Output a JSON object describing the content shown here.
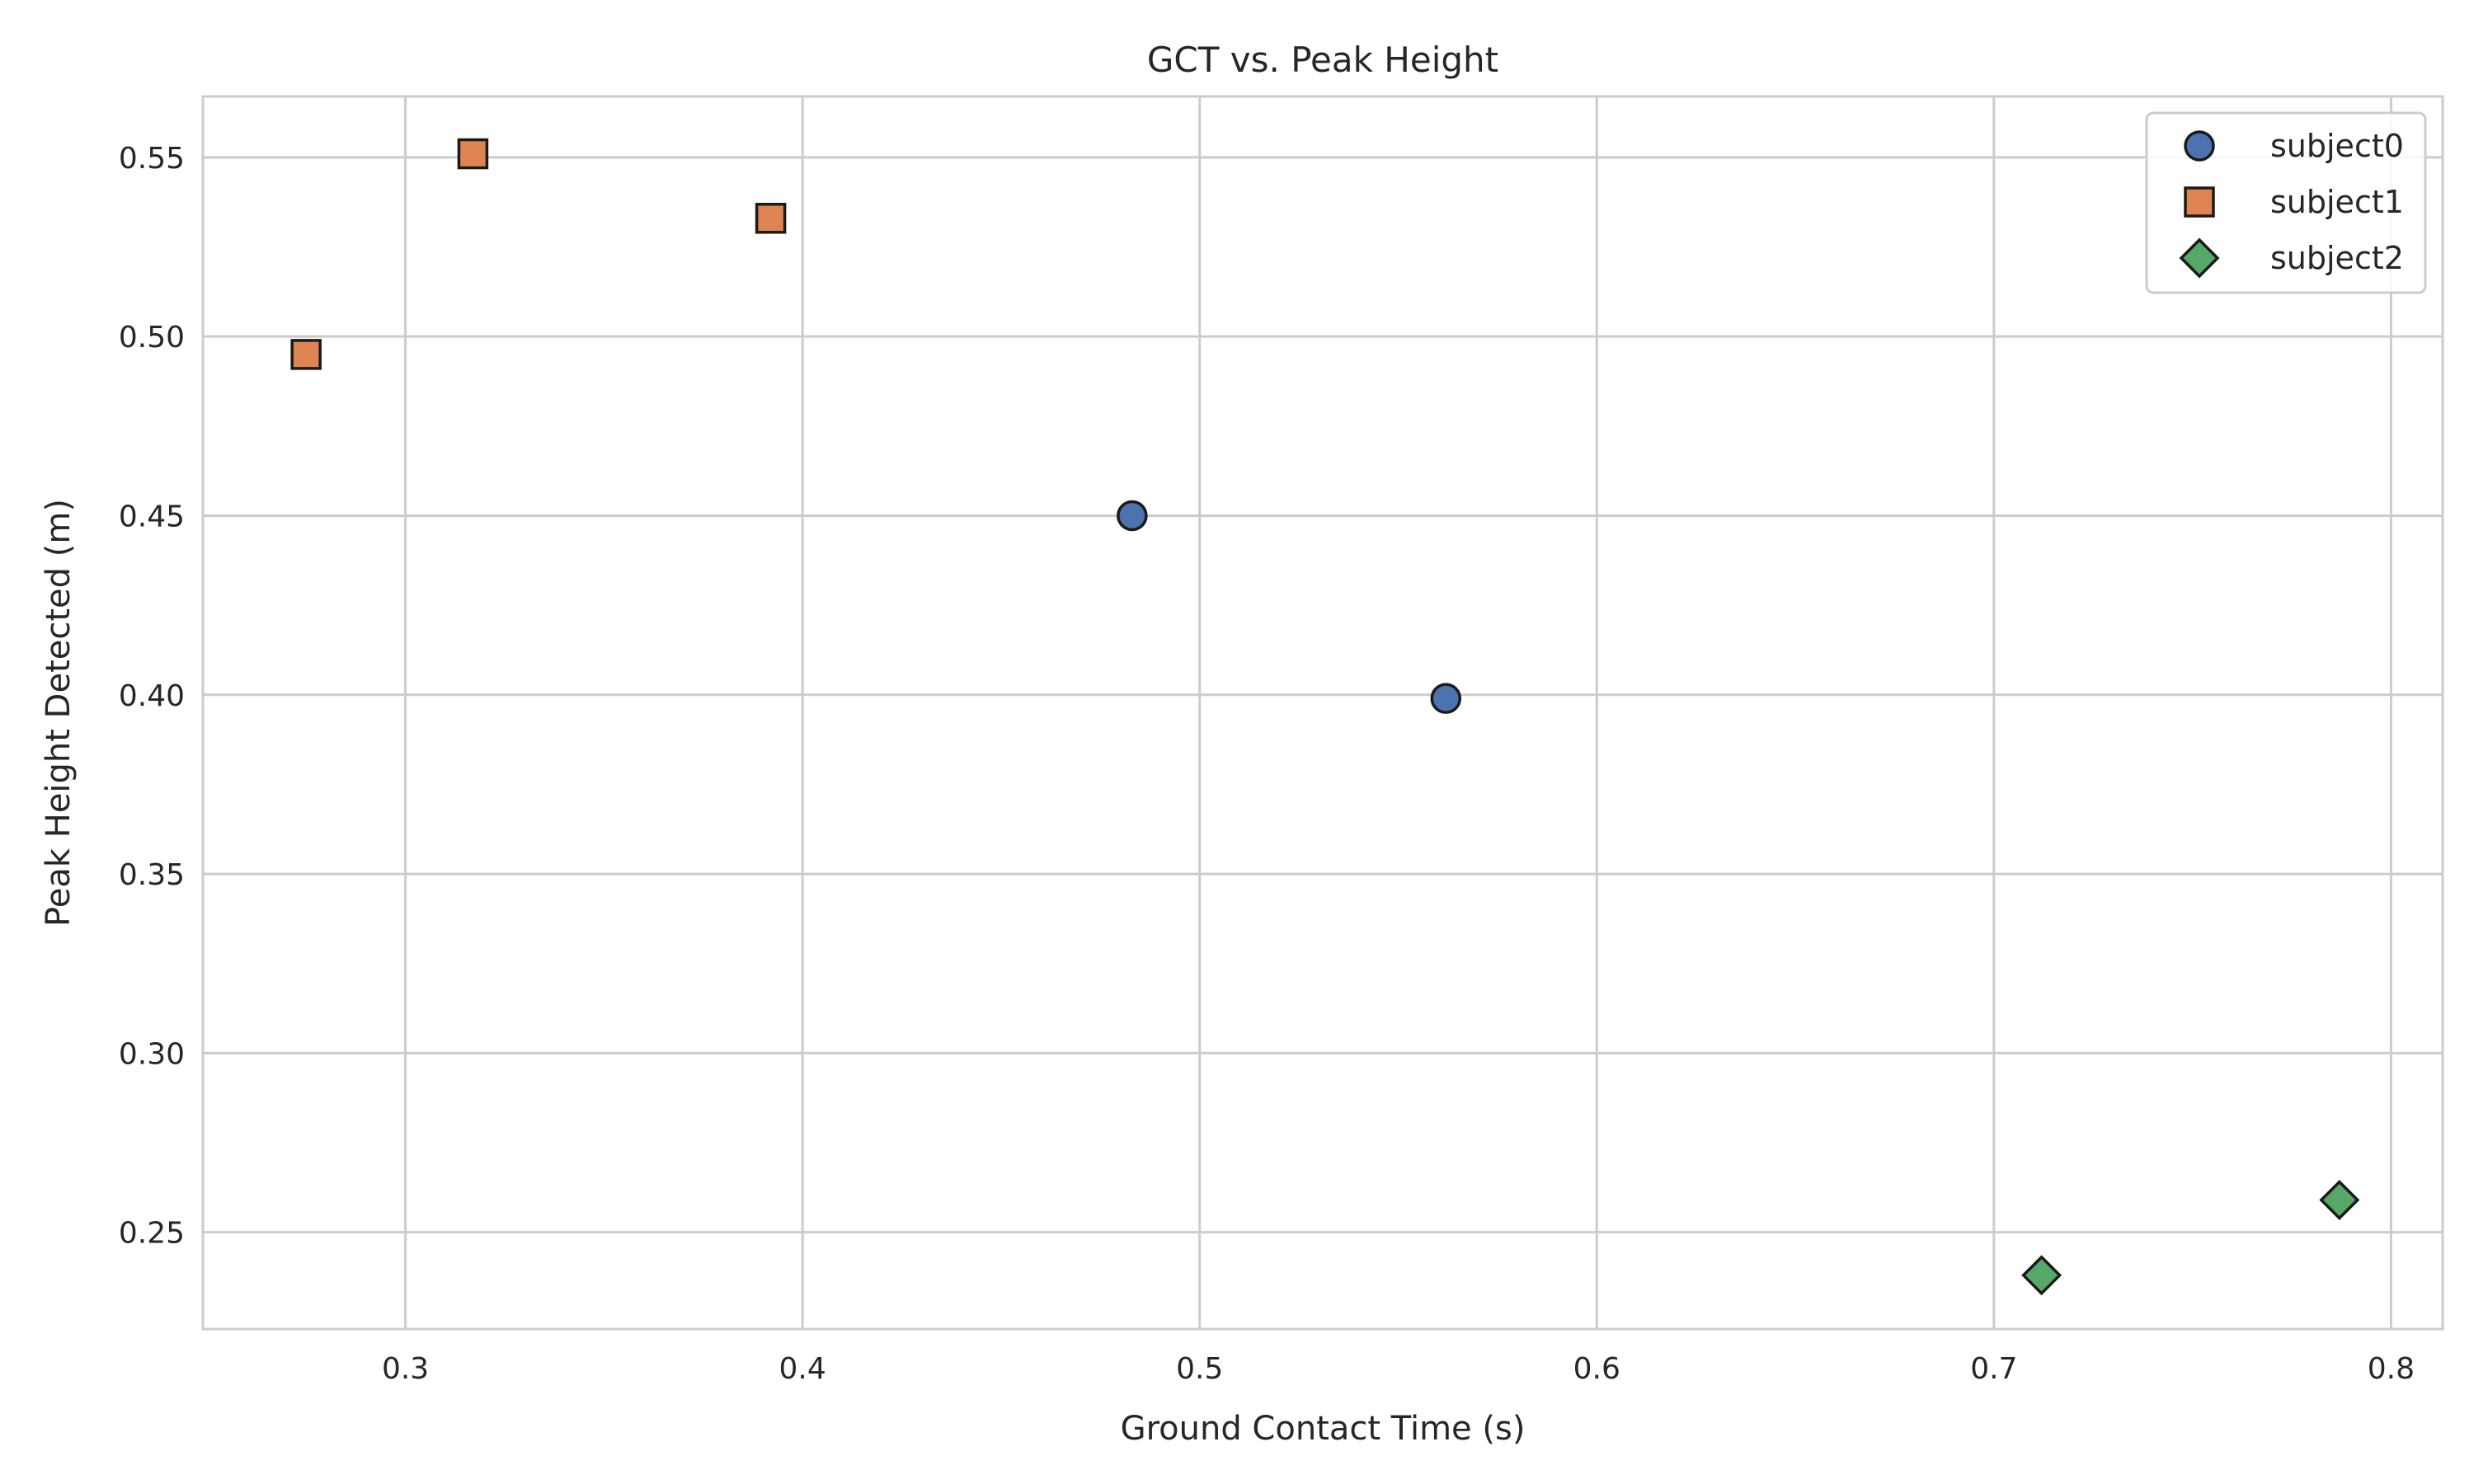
{
  "chart_data": {
    "type": "scatter",
    "title": "GCT vs. Peak Height",
    "xlabel": "Ground Contact Time (s)",
    "ylabel": "Peak Height Detected (m)",
    "xlim": [
      0.249,
      0.813
    ],
    "ylim": [
      0.223,
      0.567
    ],
    "xticks": [
      0.3,
      0.4,
      0.5,
      0.6,
      0.7,
      0.8
    ],
    "xtick_labels": [
      "0.3",
      "0.4",
      "0.5",
      "0.6",
      "0.7",
      "0.8"
    ],
    "yticks": [
      0.25,
      0.3,
      0.35,
      0.4,
      0.45,
      0.5,
      0.55
    ],
    "ytick_labels": [
      "0.25",
      "0.30",
      "0.35",
      "0.40",
      "0.45",
      "0.50",
      "0.55"
    ],
    "grid": true,
    "legend_position": "top-right",
    "series": [
      {
        "name": "subject0",
        "marker": "circle",
        "color": "#4c72b0",
        "x": [
          0.483,
          0.562
        ],
        "y": [
          0.45,
          0.399
        ]
      },
      {
        "name": "subject1",
        "marker": "square",
        "color": "#dd8452",
        "x": [
          0.275,
          0.317,
          0.392
        ],
        "y": [
          0.495,
          0.551,
          0.533
        ]
      },
      {
        "name": "subject2",
        "marker": "diamond",
        "color": "#55a868",
        "x": [
          0.712,
          0.787
        ],
        "y": [
          0.238,
          0.259
        ]
      }
    ]
  }
}
